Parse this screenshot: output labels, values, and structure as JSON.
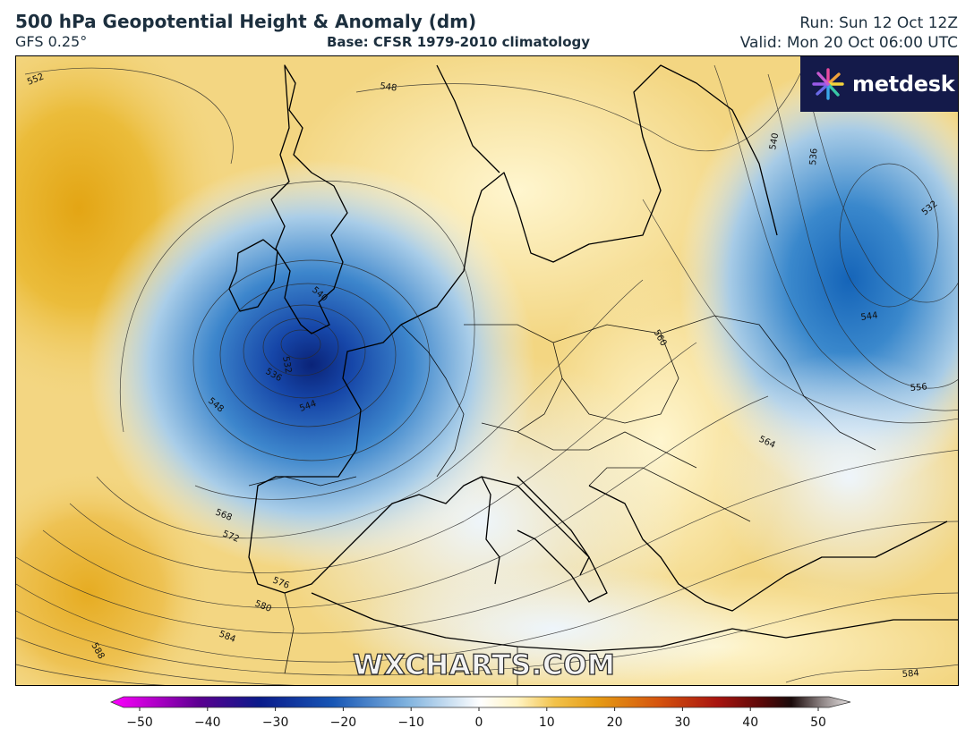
{
  "header": {
    "title": "500 hPa Geopotential Height & Anomaly (dm)",
    "model": "GFS 0.25°",
    "base": "Base: CFSR 1979-2010 climatology",
    "run": "Run: Sun 12 Oct 12Z",
    "valid": "Valid: Mon 20 Oct 06:00 UTC"
  },
  "logo": {
    "text": "metdesk",
    "icon": "metdesk-starburst-icon"
  },
  "watermark": "WXCHARTS.COM",
  "colorbar": {
    "ticks": [
      "−50",
      "−40",
      "−30",
      "−20",
      "−10",
      "0",
      "10",
      "20",
      "30",
      "40",
      "50"
    ],
    "min": -50,
    "max": 50
  },
  "contour_labels": [
    "552",
    "548",
    "540",
    "536",
    "532",
    "544",
    "540",
    "532",
    "536",
    "544",
    "548",
    "568",
    "572",
    "576",
    "580",
    "584",
    "588",
    "560",
    "564",
    "556",
    "584"
  ],
  "colors": {
    "positive_anomaly": "#e8b21a",
    "negative_anomaly": "#1f6fc0",
    "deep_negative": "#0a2f8a",
    "neutral": "#f4f8fc",
    "logo_bg": "#141a4a"
  }
}
